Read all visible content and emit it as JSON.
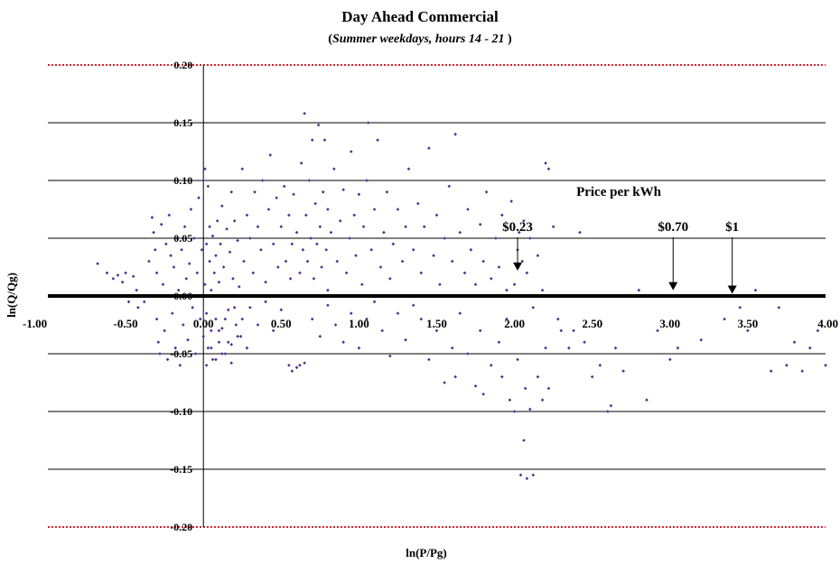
{
  "chart_data": {
    "type": "scatter",
    "title": "Day Ahead Commercial",
    "subtitle_prefix": "(",
    "subtitle": "Summer weekdays, hours 14 - 21",
    "subtitle_suffix": " )",
    "xlabel": "ln(P/Pg)",
    "ylabel": "ln(Q/Qg)",
    "xlim": [
      -1.0,
      4.0
    ],
    "ylim": [
      -0.2,
      0.2
    ],
    "x_ticks": [
      -1.0,
      -0.5,
      0.0,
      0.5,
      1.0,
      1.5,
      2.0,
      2.5,
      3.0,
      3.5,
      4.0
    ],
    "x_tick_labels": [
      "-1.00",
      "-0.50",
      "0.00",
      "0.50",
      "1.00",
      "1.50",
      "2.00",
      "2.50",
      "3.00",
      "3.50",
      "4.00"
    ],
    "y_ticks": [
      -0.2,
      -0.15,
      -0.1,
      -0.05,
      0.0,
      0.05,
      0.1,
      0.15,
      0.2
    ],
    "y_tick_labels": [
      "-0.20",
      "-0.15",
      "-0.10",
      "-0.05",
      "0.00",
      "0.05",
      "0.10",
      "0.15",
      "0.20"
    ],
    "grid": true,
    "marker_color": "#4b2e8f",
    "zero_line_color": "#000000",
    "boundary_line_color": "#d9202a",
    "annotation_heading": "Price per kWh",
    "annotations": [
      {
        "label": "$0.23",
        "x": 2.02,
        "y": 0.022
      },
      {
        "label": "$0.70",
        "x": 3.02,
        "y": 0.005
      },
      {
        "label": "$1",
        "x": 3.4,
        "y": 0.002
      }
    ],
    "series": [
      {
        "points": [
          [
            -0.68,
            0.028
          ],
          [
            -0.62,
            0.02
          ],
          [
            -0.58,
            0.015
          ],
          [
            -0.55,
            0.018
          ],
          [
            -0.52,
            0.012
          ],
          [
            -0.5,
            0.02
          ],
          [
            -0.48,
            -0.005
          ],
          [
            -0.45,
            0.017
          ],
          [
            -0.43,
            0.005
          ],
          [
            -0.42,
            -0.01
          ],
          [
            -0.4,
            0.0
          ],
          [
            -0.38,
            -0.005
          ],
          [
            -0.35,
            0.03
          ],
          [
            -0.33,
            0.068
          ],
          [
            -0.32,
            0.055
          ],
          [
            -0.31,
            0.04
          ],
          [
            -0.3,
            0.02
          ],
          [
            -0.3,
            -0.02
          ],
          [
            -0.29,
            -0.04
          ],
          [
            -0.28,
            -0.05
          ],
          [
            -0.27,
            0.062
          ],
          [
            -0.26,
            0.01
          ],
          [
            -0.25,
            -0.03
          ],
          [
            -0.24,
            0.045
          ],
          [
            -0.23,
            -0.055
          ],
          [
            -0.22,
            0.07
          ],
          [
            -0.21,
            0.035
          ],
          [
            -0.2,
            -0.015
          ],
          [
            -0.19,
            0.025
          ],
          [
            -0.18,
            -0.045
          ],
          [
            -0.17,
            0.05
          ],
          [
            -0.16,
            0.005
          ],
          [
            -0.15,
            -0.06
          ],
          [
            -0.14,
            0.04
          ],
          [
            -0.13,
            -0.025
          ],
          [
            -0.12,
            0.06
          ],
          [
            -0.11,
            0.015
          ],
          [
            -0.1,
            -0.038
          ],
          [
            -0.09,
            0.028
          ],
          [
            -0.08,
            0.075
          ],
          [
            -0.07,
            -0.01
          ],
          [
            -0.06,
            0.05
          ],
          [
            -0.05,
            -0.05
          ],
          [
            -0.04,
            0.02
          ],
          [
            -0.03,
            0.085
          ],
          [
            -0.02,
            -0.02
          ],
          [
            -0.01,
            0.04
          ],
          [
            0.0,
            0.1
          ],
          [
            0.0,
            -0.035
          ],
          [
            0.01,
            0.11
          ],
          [
            0.01,
            0.01
          ],
          [
            0.02,
            0.045
          ],
          [
            0.02,
            -0.015
          ],
          [
            0.03,
            0.095
          ],
          [
            0.03,
            -0.045
          ],
          [
            0.04,
            0.03
          ],
          [
            0.04,
            0.06
          ],
          [
            0.05,
            -0.03
          ],
          [
            0.05,
            0.005
          ],
          [
            0.06,
            0.052
          ],
          [
            0.06,
            -0.055
          ],
          [
            0.07,
            0.02
          ],
          [
            0.08,
            0.035
          ],
          [
            0.08,
            -0.02
          ],
          [
            0.09,
            0.065
          ],
          [
            0.1,
            -0.04
          ],
          [
            0.1,
            0.012
          ],
          [
            0.11,
            0.045
          ],
          [
            0.12,
            -0.028
          ],
          [
            0.12,
            0.078
          ],
          [
            0.13,
            0.025
          ],
          [
            0.14,
            -0.05
          ],
          [
            0.15,
            0.058
          ],
          [
            0.15,
            0.0
          ],
          [
            0.16,
            -0.012
          ],
          [
            0.17,
            0.038
          ],
          [
            0.18,
            0.09
          ],
          [
            0.18,
            -0.042
          ],
          [
            0.19,
            0.015
          ],
          [
            0.2,
            0.065
          ],
          [
            0.21,
            -0.025
          ],
          [
            0.22,
            0.048
          ],
          [
            0.23,
            0.008
          ],
          [
            0.24,
            -0.035
          ],
          [
            0.25,
            0.11
          ],
          [
            0.26,
            0.03
          ],
          [
            0.28,
            0.07
          ],
          [
            0.3,
            0.05
          ],
          [
            0.32,
            0.02
          ],
          [
            0.33,
            0.09
          ],
          [
            0.35,
            0.06
          ],
          [
            0.37,
            0.04
          ],
          [
            0.38,
            0.1
          ],
          [
            0.4,
            0.012
          ],
          [
            0.42,
            0.075
          ],
          [
            0.43,
            0.122
          ],
          [
            0.45,
            0.045
          ],
          [
            0.47,
            0.085
          ],
          [
            0.48,
            0.025
          ],
          [
            0.5,
            0.06
          ],
          [
            0.52,
            0.095
          ],
          [
            0.53,
            0.03
          ],
          [
            0.55,
            0.07
          ],
          [
            0.56,
            0.015
          ],
          [
            0.57,
            0.045
          ],
          [
            0.58,
            0.088
          ],
          [
            0.6,
            0.055
          ],
          [
            0.62,
            0.02
          ],
          [
            0.63,
            0.115
          ],
          [
            0.64,
            0.04
          ],
          [
            0.65,
            0.158
          ],
          [
            0.66,
            0.07
          ],
          [
            0.67,
            0.03
          ],
          [
            0.68,
            0.1
          ],
          [
            0.69,
            0.05
          ],
          [
            0.7,
            0.135
          ],
          [
            0.71,
            0.015
          ],
          [
            0.72,
            0.08
          ],
          [
            0.73,
            0.045
          ],
          [
            0.74,
            0.148
          ],
          [
            0.75,
            0.06
          ],
          [
            0.76,
            0.025
          ],
          [
            0.77,
            0.09
          ],
          [
            0.78,
            0.135
          ],
          [
            0.79,
            0.04
          ],
          [
            0.8,
            0.075
          ],
          [
            0.8,
            0.005
          ],
          [
            0.82,
            0.055
          ],
          [
            0.84,
            0.11
          ],
          [
            0.86,
            0.03
          ],
          [
            0.88,
            0.065
          ],
          [
            0.9,
            0.092
          ],
          [
            0.92,
            0.02
          ],
          [
            0.94,
            0.05
          ],
          [
            0.95,
            0.125
          ],
          [
            0.97,
            0.07
          ],
          [
            0.98,
            0.035
          ],
          [
            1.0,
            0.088
          ],
          [
            1.02,
            0.01
          ],
          [
            1.03,
            0.06
          ],
          [
            1.05,
            0.1
          ],
          [
            1.06,
            0.15
          ],
          [
            1.08,
            0.04
          ],
          [
            1.1,
            0.075
          ],
          [
            1.12,
            0.135
          ],
          [
            1.14,
            0.025
          ],
          [
            1.16,
            0.055
          ],
          [
            1.18,
            0.09
          ],
          [
            1.2,
            0.015
          ],
          [
            1.22,
            0.045
          ],
          [
            1.25,
            0.075
          ],
          [
            1.28,
            0.03
          ],
          [
            1.3,
            0.06
          ],
          [
            1.32,
            0.11
          ],
          [
            1.35,
            0.04
          ],
          [
            1.38,
            0.08
          ],
          [
            1.4,
            0.02
          ],
          [
            1.42,
            0.06
          ],
          [
            1.45,
            0.128
          ],
          [
            1.48,
            0.035
          ],
          [
            1.5,
            0.07
          ],
          [
            1.52,
            0.01
          ],
          [
            1.55,
            0.05
          ],
          [
            1.58,
            0.095
          ],
          [
            1.6,
            0.03
          ],
          [
            1.62,
            0.14
          ],
          [
            1.65,
            0.055
          ],
          [
            1.68,
            0.02
          ],
          [
            1.7,
            0.075
          ],
          [
            1.72,
            0.04
          ],
          [
            1.75,
            0.01
          ],
          [
            1.78,
            0.062
          ],
          [
            1.8,
            0.03
          ],
          [
            1.82,
            0.09
          ],
          [
            1.85,
            0.015
          ],
          [
            1.88,
            0.05
          ],
          [
            1.9,
            0.025
          ],
          [
            1.92,
            0.07
          ],
          [
            1.95,
            0.005
          ],
          [
            1.98,
            0.082
          ],
          [
            0.02,
            -0.06
          ],
          [
            0.05,
            -0.045
          ],
          [
            0.08,
            -0.055
          ],
          [
            0.1,
            -0.03
          ],
          [
            0.12,
            -0.05
          ],
          [
            0.14,
            -0.02
          ],
          [
            0.16,
            -0.04
          ],
          [
            0.18,
            -0.058
          ],
          [
            0.2,
            -0.01
          ],
          [
            0.22,
            -0.035
          ],
          [
            0.25,
            -0.02
          ],
          [
            0.28,
            -0.045
          ],
          [
            0.3,
            -0.01
          ],
          [
            0.35,
            -0.025
          ],
          [
            0.4,
            -0.005
          ],
          [
            0.45,
            -0.03
          ],
          [
            0.5,
            -0.012
          ],
          [
            0.55,
            -0.06
          ],
          [
            0.57,
            -0.065
          ],
          [
            0.6,
            -0.062
          ],
          [
            0.62,
            -0.06
          ],
          [
            0.65,
            -0.058
          ],
          [
            0.7,
            -0.02
          ],
          [
            0.75,
            -0.035
          ],
          [
            0.8,
            -0.008
          ],
          [
            0.85,
            -0.025
          ],
          [
            0.9,
            -0.04
          ],
          [
            0.95,
            -0.015
          ],
          [
            1.0,
            -0.045
          ],
          [
            1.05,
            -0.02
          ],
          [
            1.1,
            -0.005
          ],
          [
            1.15,
            -0.03
          ],
          [
            1.2,
            -0.052
          ],
          [
            1.25,
            -0.015
          ],
          [
            1.3,
            -0.038
          ],
          [
            1.35,
            -0.008
          ],
          [
            1.4,
            -0.02
          ],
          [
            1.45,
            -0.055
          ],
          [
            1.5,
            -0.03
          ],
          [
            1.55,
            -0.075
          ],
          [
            1.6,
            -0.045
          ],
          [
            1.62,
            -0.07
          ],
          [
            1.65,
            -0.015
          ],
          [
            1.7,
            -0.05
          ],
          [
            1.75,
            -0.078
          ],
          [
            1.78,
            -0.03
          ],
          [
            1.8,
            -0.085
          ],
          [
            1.85,
            -0.06
          ],
          [
            1.9,
            -0.04
          ],
          [
            1.92,
            -0.07
          ],
          [
            1.95,
            -0.02
          ],
          [
            1.97,
            -0.09
          ],
          [
            2.0,
            -0.1
          ],
          [
            2.02,
            -0.055
          ],
          [
            2.04,
            -0.155
          ],
          [
            2.06,
            -0.125
          ],
          [
            2.07,
            -0.08
          ],
          [
            2.08,
            -0.158
          ],
          [
            2.1,
            -0.098
          ],
          [
            2.12,
            -0.155
          ],
          [
            2.15,
            -0.07
          ],
          [
            2.18,
            -0.09
          ],
          [
            2.2,
            -0.045
          ],
          [
            2.22,
            -0.08
          ],
          [
            2.0,
            0.01
          ],
          [
            2.02,
            0.04
          ],
          [
            2.03,
            0.055
          ],
          [
            2.05,
            0.03
          ],
          [
            2.06,
            0.065
          ],
          [
            2.08,
            0.02
          ],
          [
            2.1,
            0.05
          ],
          [
            2.12,
            -0.01
          ],
          [
            2.15,
            0.035
          ],
          [
            2.18,
            0.005
          ],
          [
            2.2,
            0.115
          ],
          [
            2.22,
            0.11
          ],
          [
            2.25,
            0.06
          ],
          [
            2.28,
            -0.02
          ],
          [
            2.3,
            -0.03
          ],
          [
            2.35,
            -0.045
          ],
          [
            2.38,
            -0.03
          ],
          [
            2.42,
            0.055
          ],
          [
            2.45,
            -0.04
          ],
          [
            2.5,
            -0.07
          ],
          [
            2.55,
            -0.06
          ],
          [
            2.6,
            -0.1
          ],
          [
            2.62,
            -0.095
          ],
          [
            2.65,
            -0.045
          ],
          [
            2.7,
            -0.065
          ],
          [
            2.75,
            0.0
          ],
          [
            2.8,
            0.005
          ],
          [
            2.85,
            -0.09
          ],
          [
            2.92,
            -0.03
          ],
          [
            3.0,
            -0.055
          ],
          [
            3.05,
            -0.045
          ],
          [
            3.2,
            -0.038
          ],
          [
            3.35,
            -0.02
          ],
          [
            3.5,
            -0.03
          ],
          [
            3.55,
            0.005
          ],
          [
            3.65,
            -0.065
          ],
          [
            3.7,
            -0.01
          ],
          [
            3.75,
            -0.06
          ],
          [
            3.8,
            -0.04
          ],
          [
            3.85,
            -0.065
          ],
          [
            3.9,
            -0.045
          ],
          [
            3.95,
            -0.03
          ],
          [
            4.0,
            -0.06
          ],
          [
            3.45,
            -0.01
          ]
        ]
      }
    ]
  }
}
